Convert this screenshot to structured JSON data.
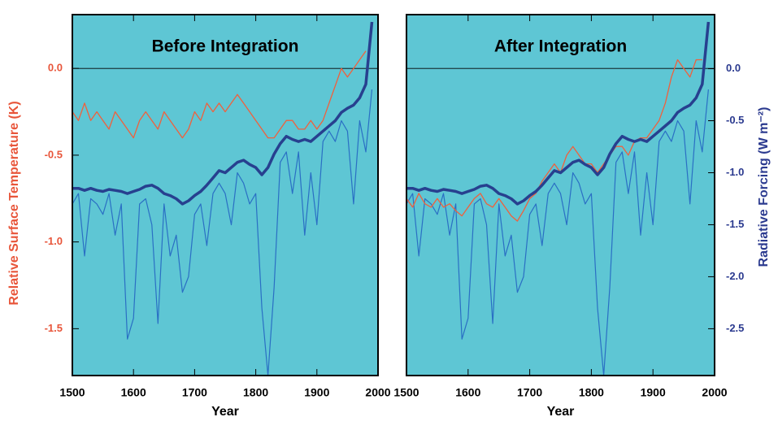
{
  "chart_data": [
    {
      "type": "line",
      "title": "Before Integration",
      "xlabel": "Year",
      "ylabel": "Relative Surface Temperature (K)",
      "xlim": [
        1500,
        2000
      ],
      "xticks": [
        1500,
        1600,
        1700,
        1800,
        1900,
        2000
      ],
      "ylim": [
        -1.77,
        0.31
      ],
      "yticks": [
        {
          "value": 0,
          "label": "0.0"
        },
        -0.5,
        {
          "value": -1,
          "label": "-1.0"
        },
        -1.5
      ],
      "y2lim": [
        -2.95,
        0.52
      ],
      "x": [
        1500,
        1510,
        1520,
        1530,
        1540,
        1550,
        1560,
        1570,
        1580,
        1590,
        1600,
        1610,
        1620,
        1630,
        1640,
        1650,
        1660,
        1670,
        1680,
        1690,
        1700,
        1710,
        1720,
        1730,
        1740,
        1750,
        1760,
        1770,
        1780,
        1790,
        1800,
        1810,
        1820,
        1830,
        1840,
        1850,
        1860,
        1870,
        1880,
        1890,
        1900,
        1910,
        1920,
        1930,
        1940,
        1950,
        1960,
        1970,
        1980,
        1990
      ],
      "series": [
        {
          "color": "#2a6fc4",
          "axis": "y2",
          "values": [
            -1.3,
            -1.2,
            -1.8,
            -1.25,
            -1.3,
            -1.4,
            -1.2,
            -1.6,
            -1.3,
            -2.6,
            -2.4,
            -1.3,
            -1.25,
            -1.5,
            -2.45,
            -1.3,
            -1.8,
            -1.6,
            -2.15,
            -2.0,
            -1.4,
            -1.3,
            -1.7,
            -1.2,
            -1.1,
            -1.2,
            -1.5,
            -1.0,
            -1.1,
            -1.3,
            -1.2,
            -2.3,
            -2.95,
            -2.1,
            -0.9,
            -0.8,
            -1.2,
            -0.8,
            -1.6,
            -1.0,
            -1.5,
            -0.7,
            -0.6,
            -0.7,
            -0.5,
            -0.6,
            -1.3,
            -0.5,
            -0.8,
            -0.2
          ]
        },
        {
          "color": "#f0603c",
          "values": [
            -0.25,
            -0.3,
            -0.2,
            -0.3,
            -0.25,
            -0.3,
            -0.35,
            -0.25,
            -0.3,
            -0.35,
            -0.4,
            -0.3,
            -0.25,
            -0.3,
            -0.35,
            -0.25,
            -0.3,
            -0.35,
            -0.4,
            -0.35,
            -0.25,
            -0.3,
            -0.2,
            -0.25,
            -0.2,
            -0.25,
            -0.2,
            -0.15,
            -0.2,
            -0.25,
            -0.3,
            -0.35,
            -0.4,
            -0.4,
            -0.35,
            -0.3,
            -0.3,
            -0.35,
            -0.35,
            -0.3,
            -0.35,
            -0.3,
            -0.2,
            -0.1,
            0.0,
            -0.05,
            0.0,
            0.05,
            0.1,
            null
          ]
        },
        {
          "color": "#27408f",
          "axis": "y2",
          "values": [
            -1.15,
            -1.15,
            -1.17,
            -1.15,
            -1.17,
            -1.18,
            -1.16,
            -1.17,
            -1.18,
            -1.2,
            -1.18,
            -1.16,
            -1.13,
            -1.12,
            -1.15,
            -1.2,
            -1.22,
            -1.25,
            -1.3,
            -1.27,
            -1.22,
            -1.18,
            -1.12,
            -1.05,
            -0.98,
            -1.0,
            -0.95,
            -0.9,
            -0.88,
            -0.92,
            -0.95,
            -1.02,
            -0.95,
            -0.82,
            -0.72,
            -0.65,
            -0.68,
            -0.7,
            -0.68,
            -0.7,
            -0.65,
            -0.6,
            -0.55,
            -0.5,
            -0.42,
            -0.38,
            -0.35,
            -0.28,
            -0.15,
            0.45
          ]
        }
      ]
    },
    {
      "type": "line",
      "title": "After Integration",
      "xlabel": "Year",
      "y2label": "Radiative Forcing (W m⁻²)",
      "xlim": [
        1500,
        2000
      ],
      "xticks": [
        1500,
        1600,
        1700,
        1800,
        1900,
        2000
      ],
      "ylim": [
        -1.77,
        0.31
      ],
      "y2lim": [
        -2.95,
        0.52
      ],
      "y2ticks": [
        {
          "value": 0,
          "label": "0.0"
        },
        -0.5,
        {
          "value": -1,
          "label": "-1.0"
        },
        -1.5,
        {
          "value": -2,
          "label": "-2.0"
        },
        -2.5
      ],
      "x": [
        1500,
        1510,
        1520,
        1530,
        1540,
        1550,
        1560,
        1570,
        1580,
        1590,
        1600,
        1610,
        1620,
        1630,
        1640,
        1650,
        1660,
        1670,
        1680,
        1690,
        1700,
        1710,
        1720,
        1730,
        1740,
        1750,
        1760,
        1770,
        1780,
        1790,
        1800,
        1810,
        1820,
        1830,
        1840,
        1850,
        1860,
        1870,
        1880,
        1890,
        1900,
        1910,
        1920,
        1930,
        1940,
        1950,
        1960,
        1970,
        1980,
        1990
      ],
      "series": [
        {
          "color": "#2a6fc4",
          "axis": "y2",
          "values": [
            -1.3,
            -1.2,
            -1.8,
            -1.25,
            -1.3,
            -1.4,
            -1.2,
            -1.6,
            -1.3,
            -2.6,
            -2.4,
            -1.3,
            -1.25,
            -1.5,
            -2.45,
            -1.3,
            -1.8,
            -1.6,
            -2.15,
            -2.0,
            -1.4,
            -1.3,
            -1.7,
            -1.2,
            -1.1,
            -1.2,
            -1.5,
            -1.0,
            -1.1,
            -1.3,
            -1.2,
            -2.3,
            -2.95,
            -2.1,
            -0.9,
            -0.8,
            -1.2,
            -0.8,
            -1.6,
            -1.0,
            -1.5,
            -0.7,
            -0.6,
            -0.7,
            -0.5,
            -0.6,
            -1.3,
            -0.5,
            -0.8,
            -0.2
          ]
        },
        {
          "color": "#f0603c",
          "values": [
            -0.75,
            -0.8,
            -0.72,
            -0.78,
            -0.8,
            -0.75,
            -0.8,
            -0.78,
            -0.82,
            -0.85,
            -0.8,
            -0.75,
            -0.72,
            -0.78,
            -0.8,
            -0.75,
            -0.8,
            -0.85,
            -0.88,
            -0.82,
            -0.75,
            -0.72,
            -0.65,
            -0.6,
            -0.55,
            -0.6,
            -0.5,
            -0.45,
            -0.5,
            -0.55,
            -0.55,
            -0.6,
            -0.55,
            -0.5,
            -0.45,
            -0.45,
            -0.5,
            -0.42,
            -0.4,
            -0.4,
            -0.35,
            -0.3,
            -0.2,
            -0.05,
            0.05,
            0.0,
            -0.05,
            0.05,
            0.05,
            null
          ]
        },
        {
          "color": "#27408f",
          "axis": "y2",
          "values": [
            -1.15,
            -1.15,
            -1.17,
            -1.15,
            -1.17,
            -1.18,
            -1.16,
            -1.17,
            -1.18,
            -1.2,
            -1.18,
            -1.16,
            -1.13,
            -1.12,
            -1.15,
            -1.2,
            -1.22,
            -1.25,
            -1.3,
            -1.27,
            -1.22,
            -1.18,
            -1.12,
            -1.05,
            -0.98,
            -1.0,
            -0.95,
            -0.9,
            -0.88,
            -0.92,
            -0.95,
            -1.02,
            -0.95,
            -0.82,
            -0.72,
            -0.65,
            -0.68,
            -0.7,
            -0.68,
            -0.7,
            -0.65,
            -0.6,
            -0.55,
            -0.5,
            -0.42,
            -0.38,
            -0.35,
            -0.28,
            -0.15,
            0.45
          ]
        }
      ]
    }
  ]
}
